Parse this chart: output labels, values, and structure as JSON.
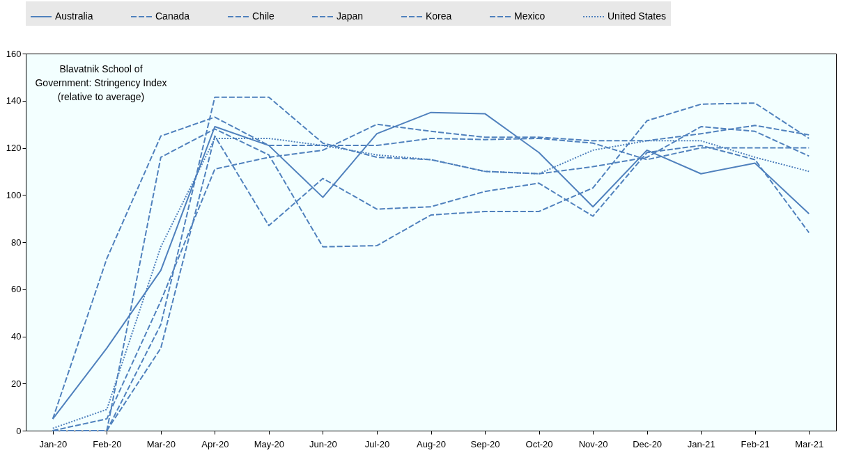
{
  "chart_data": {
    "type": "line",
    "categories": [
      "Jan-20",
      "Feb-20",
      "Mar-20",
      "Apr-20",
      "May-20",
      "Jun-20",
      "Jul-20",
      "Aug-20",
      "Sep-20",
      "Oct-20",
      "Nov-20",
      "Dec-20",
      "Jan-21",
      "Feb-21",
      "Mar-21"
    ],
    "series": [
      {
        "name": "Australia",
        "color": "#4f81bd",
        "line_style": "solid",
        "values": [
          5,
          35,
          68,
          129,
          121,
          99,
          126,
          135,
          134.5,
          118,
          95,
          119,
          109,
          113.5,
          92
        ]
      },
      {
        "name": "Canada",
        "color": "#4f81bd",
        "line_style": "dashed",
        "values": [
          0,
          5,
          55,
          111,
          116,
          119,
          130,
          127,
          124.5,
          124.5,
          123,
          123,
          126,
          129.5,
          125.5
        ]
      },
      {
        "name": "Chile",
        "color": "#4f81bd",
        "line_style": "dashed",
        "values": [
          5,
          73,
          125,
          133,
          121,
          121,
          121,
          124,
          123.5,
          124,
          122,
          115,
          120,
          120,
          120
        ]
      },
      {
        "name": "Japan",
        "color": "#4f81bd",
        "line_style": "dashed",
        "values": [
          0,
          0,
          116,
          128,
          117,
          78,
          78.5,
          91.5,
          93,
          93,
          103,
          131.5,
          138.5,
          139,
          124
        ]
      },
      {
        "name": "Korea",
        "color": "#4f81bd",
        "line_style": "dashed",
        "values": [
          0,
          0,
          35,
          125,
          87,
          107,
          94,
          95,
          101.5,
          105,
          91,
          118,
          121,
          115,
          84
        ]
      },
      {
        "name": "Mexico",
        "color": "#4f81bd",
        "line_style": "dashed",
        "values": [
          0,
          0,
          45,
          141.5,
          141.5,
          122,
          116,
          115,
          110,
          109,
          112,
          116,
          129,
          127,
          116.5
        ]
      },
      {
        "name": "United States",
        "color": "#4f81bd",
        "line_style": "dotted",
        "values": [
          1,
          9,
          78,
          124,
          124,
          121,
          117,
          115,
          110,
          109,
          119,
          123,
          123,
          116,
          110
        ]
      }
    ],
    "ylim": [
      0,
      160
    ],
    "yticks": [
      0,
      20,
      40,
      60,
      80,
      100,
      120,
      140,
      160
    ],
    "grid": false,
    "legend": "top",
    "marker": "none",
    "annotations": [
      "Blavatnik School of Government: Stringency Index (relative to average)"
    ]
  }
}
